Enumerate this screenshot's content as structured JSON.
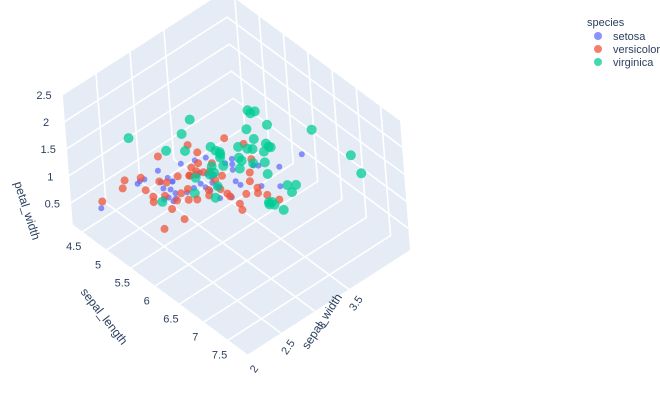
{
  "chart_data": {
    "type": "scatter",
    "title": "",
    "axes": {
      "x": {
        "label": "sepal_length",
        "ticks": [
          "4.5",
          "5",
          "5.5",
          "6",
          "6.5",
          "7",
          "7.5"
        ],
        "range": [
          4.3,
          7.9
        ]
      },
      "y": {
        "label": "sepal_width",
        "ticks": [
          "2",
          "2.5",
          "3",
          "3.5"
        ],
        "range": [
          2.0,
          4.4
        ]
      },
      "z": {
        "label": "petal_width",
        "ticks": [
          "0.5",
          "1",
          "1.5",
          "2",
          "2.5"
        ],
        "range": [
          0.1,
          2.5
        ]
      }
    },
    "legend": {
      "title": "species",
      "placement": "top-right"
    },
    "grid": true,
    "series": [
      {
        "name": "setosa",
        "color": "#636efa",
        "marker_size": 3,
        "points": [
          [
            5.1,
            3.5,
            0.2
          ],
          [
            4.9,
            3.0,
            0.2
          ],
          [
            4.7,
            3.2,
            0.2
          ],
          [
            4.6,
            3.1,
            0.2
          ],
          [
            5.0,
            3.6,
            0.2
          ],
          [
            5.4,
            3.9,
            0.4
          ],
          [
            4.6,
            3.4,
            0.3
          ],
          [
            5.0,
            3.4,
            0.2
          ],
          [
            4.4,
            2.9,
            0.2
          ],
          [
            4.9,
            3.1,
            0.1
          ],
          [
            5.4,
            3.7,
            0.2
          ],
          [
            4.8,
            3.4,
            0.2
          ],
          [
            4.8,
            3.0,
            0.1
          ],
          [
            4.3,
            3.0,
            0.1
          ],
          [
            5.8,
            4.0,
            0.2
          ],
          [
            5.7,
            4.4,
            0.4
          ],
          [
            5.4,
            3.9,
            0.4
          ],
          [
            5.1,
            3.5,
            0.3
          ],
          [
            5.7,
            3.8,
            0.3
          ],
          [
            5.1,
            3.8,
            0.3
          ],
          [
            5.4,
            3.4,
            0.2
          ],
          [
            5.1,
            3.7,
            0.4
          ],
          [
            4.6,
            3.6,
            0.2
          ],
          [
            5.1,
            3.3,
            0.5
          ],
          [
            4.8,
            3.4,
            0.2
          ],
          [
            5.0,
            3.0,
            0.2
          ],
          [
            5.0,
            3.4,
            0.4
          ],
          [
            5.2,
            3.5,
            0.2
          ],
          [
            5.2,
            3.4,
            0.2
          ],
          [
            4.7,
            3.2,
            0.2
          ],
          [
            4.8,
            3.1,
            0.2
          ],
          [
            5.4,
            3.4,
            0.4
          ],
          [
            5.2,
            4.1,
            0.1
          ],
          [
            5.5,
            4.2,
            0.2
          ],
          [
            4.9,
            3.1,
            0.2
          ],
          [
            5.0,
            3.2,
            0.2
          ],
          [
            5.5,
            3.5,
            0.2
          ],
          [
            4.4,
            3.0,
            0.2
          ],
          [
            5.1,
            3.4,
            0.2
          ],
          [
            5.0,
            3.5,
            0.3
          ],
          [
            4.5,
            2.3,
            0.3
          ],
          [
            4.4,
            3.2,
            0.2
          ],
          [
            5.0,
            3.5,
            0.6
          ],
          [
            5.1,
            3.8,
            0.4
          ],
          [
            4.8,
            3.0,
            0.3
          ],
          [
            5.1,
            3.8,
            0.2
          ],
          [
            4.6,
            3.2,
            0.2
          ],
          [
            5.3,
            3.7,
            0.2
          ],
          [
            5.0,
            3.3,
            0.2
          ]
        ]
      },
      {
        "name": "versicolor",
        "color": "#ef553b",
        "marker_size": 4,
        "points": [
          [
            7.0,
            3.2,
            1.4
          ],
          [
            6.4,
            3.2,
            1.5
          ],
          [
            6.9,
            3.1,
            1.5
          ],
          [
            5.5,
            2.3,
            1.3
          ],
          [
            6.5,
            2.8,
            1.5
          ],
          [
            5.7,
            2.8,
            1.3
          ],
          [
            6.3,
            3.3,
            1.6
          ],
          [
            4.9,
            2.4,
            1.0
          ],
          [
            6.6,
            2.9,
            1.3
          ],
          [
            5.2,
            2.7,
            1.4
          ],
          [
            5.0,
            2.0,
            1.0
          ],
          [
            5.9,
            3.0,
            1.5
          ],
          [
            6.0,
            2.2,
            1.0
          ],
          [
            6.1,
            2.9,
            1.4
          ],
          [
            5.6,
            2.9,
            1.3
          ],
          [
            6.7,
            3.1,
            1.4
          ],
          [
            5.6,
            3.0,
            1.5
          ],
          [
            5.8,
            2.7,
            1.0
          ],
          [
            6.2,
            2.2,
            1.5
          ],
          [
            5.6,
            2.5,
            1.1
          ],
          [
            5.9,
            3.2,
            1.8
          ],
          [
            6.1,
            2.8,
            1.3
          ],
          [
            6.3,
            2.5,
            1.5
          ],
          [
            6.1,
            2.8,
            1.2
          ],
          [
            6.4,
            2.9,
            1.3
          ],
          [
            6.6,
            3.0,
            1.4
          ],
          [
            6.8,
            2.8,
            1.4
          ],
          [
            6.7,
            3.0,
            1.7
          ],
          [
            6.0,
            2.9,
            1.5
          ],
          [
            5.7,
            2.6,
            1.0
          ],
          [
            5.5,
            2.4,
            1.1
          ],
          [
            5.5,
            2.4,
            1.0
          ],
          [
            5.8,
            2.7,
            1.2
          ],
          [
            6.0,
            2.7,
            1.6
          ],
          [
            5.4,
            3.0,
            1.5
          ],
          [
            6.0,
            3.4,
            1.6
          ],
          [
            6.7,
            3.1,
            1.5
          ],
          [
            6.3,
            2.3,
            1.3
          ],
          [
            5.6,
            3.0,
            1.3
          ],
          [
            5.5,
            2.5,
            1.3
          ],
          [
            5.5,
            2.6,
            1.2
          ],
          [
            6.1,
            3.0,
            1.4
          ],
          [
            5.8,
            2.6,
            1.2
          ],
          [
            5.0,
            2.3,
            1.0
          ],
          [
            5.6,
            2.7,
            1.3
          ],
          [
            5.7,
            3.0,
            1.2
          ],
          [
            5.7,
            2.9,
            1.3
          ],
          [
            6.2,
            2.9,
            1.3
          ],
          [
            5.1,
            2.5,
            1.1
          ],
          [
            5.7,
            2.8,
            1.3
          ]
        ]
      },
      {
        "name": "virginica",
        "color": "#00cc96",
        "marker_size": 5,
        "points": [
          [
            6.3,
            3.3,
            2.5
          ],
          [
            5.8,
            2.7,
            1.9
          ],
          [
            7.1,
            3.0,
            2.1
          ],
          [
            6.3,
            2.9,
            1.8
          ],
          [
            6.5,
            3.0,
            2.2
          ],
          [
            7.6,
            3.0,
            2.1
          ],
          [
            4.9,
            2.5,
            1.7
          ],
          [
            7.3,
            2.9,
            1.8
          ],
          [
            6.7,
            2.5,
            1.8
          ],
          [
            7.2,
            3.6,
            2.5
          ],
          [
            6.5,
            3.2,
            2.0
          ],
          [
            6.4,
            2.7,
            1.9
          ],
          [
            6.8,
            3.0,
            2.1
          ],
          [
            5.7,
            2.5,
            2.0
          ],
          [
            5.8,
            2.8,
            2.4
          ],
          [
            6.4,
            3.2,
            2.3
          ],
          [
            6.5,
            3.0,
            1.8
          ],
          [
            7.7,
            3.8,
            2.2
          ],
          [
            7.7,
            2.6,
            2.3
          ],
          [
            6.0,
            2.2,
            1.5
          ],
          [
            6.9,
            3.2,
            2.3
          ],
          [
            5.6,
            2.8,
            2.0
          ],
          [
            7.7,
            2.8,
            2.0
          ],
          [
            6.3,
            2.7,
            1.8
          ],
          [
            6.7,
            3.3,
            2.1
          ],
          [
            7.2,
            3.2,
            1.8
          ],
          [
            6.2,
            2.8,
            1.8
          ],
          [
            6.1,
            3.0,
            1.8
          ],
          [
            6.4,
            2.8,
            2.1
          ],
          [
            7.2,
            3.0,
            1.6
          ],
          [
            7.4,
            2.8,
            1.9
          ],
          [
            7.9,
            3.8,
            2.0
          ],
          [
            6.4,
            2.8,
            2.2
          ],
          [
            6.3,
            2.8,
            1.5
          ],
          [
            6.1,
            2.6,
            1.4
          ],
          [
            7.7,
            3.0,
            2.3
          ],
          [
            6.3,
            3.4,
            2.4
          ],
          [
            6.4,
            3.1,
            1.8
          ],
          [
            6.0,
            3.0,
            1.8
          ],
          [
            6.9,
            3.1,
            2.1
          ],
          [
            6.7,
            3.1,
            2.4
          ],
          [
            6.9,
            3.1,
            2.3
          ],
          [
            6.8,
            3.2,
            2.3
          ],
          [
            6.7,
            3.3,
            2.5
          ],
          [
            6.7,
            3.0,
            2.3
          ],
          [
            6.3,
            2.5,
            1.9
          ],
          [
            6.5,
            3.0,
            2.0
          ],
          [
            6.2,
            3.4,
            2.3
          ],
          [
            5.9,
            3.0,
            1.8
          ]
        ]
      }
    ]
  }
}
